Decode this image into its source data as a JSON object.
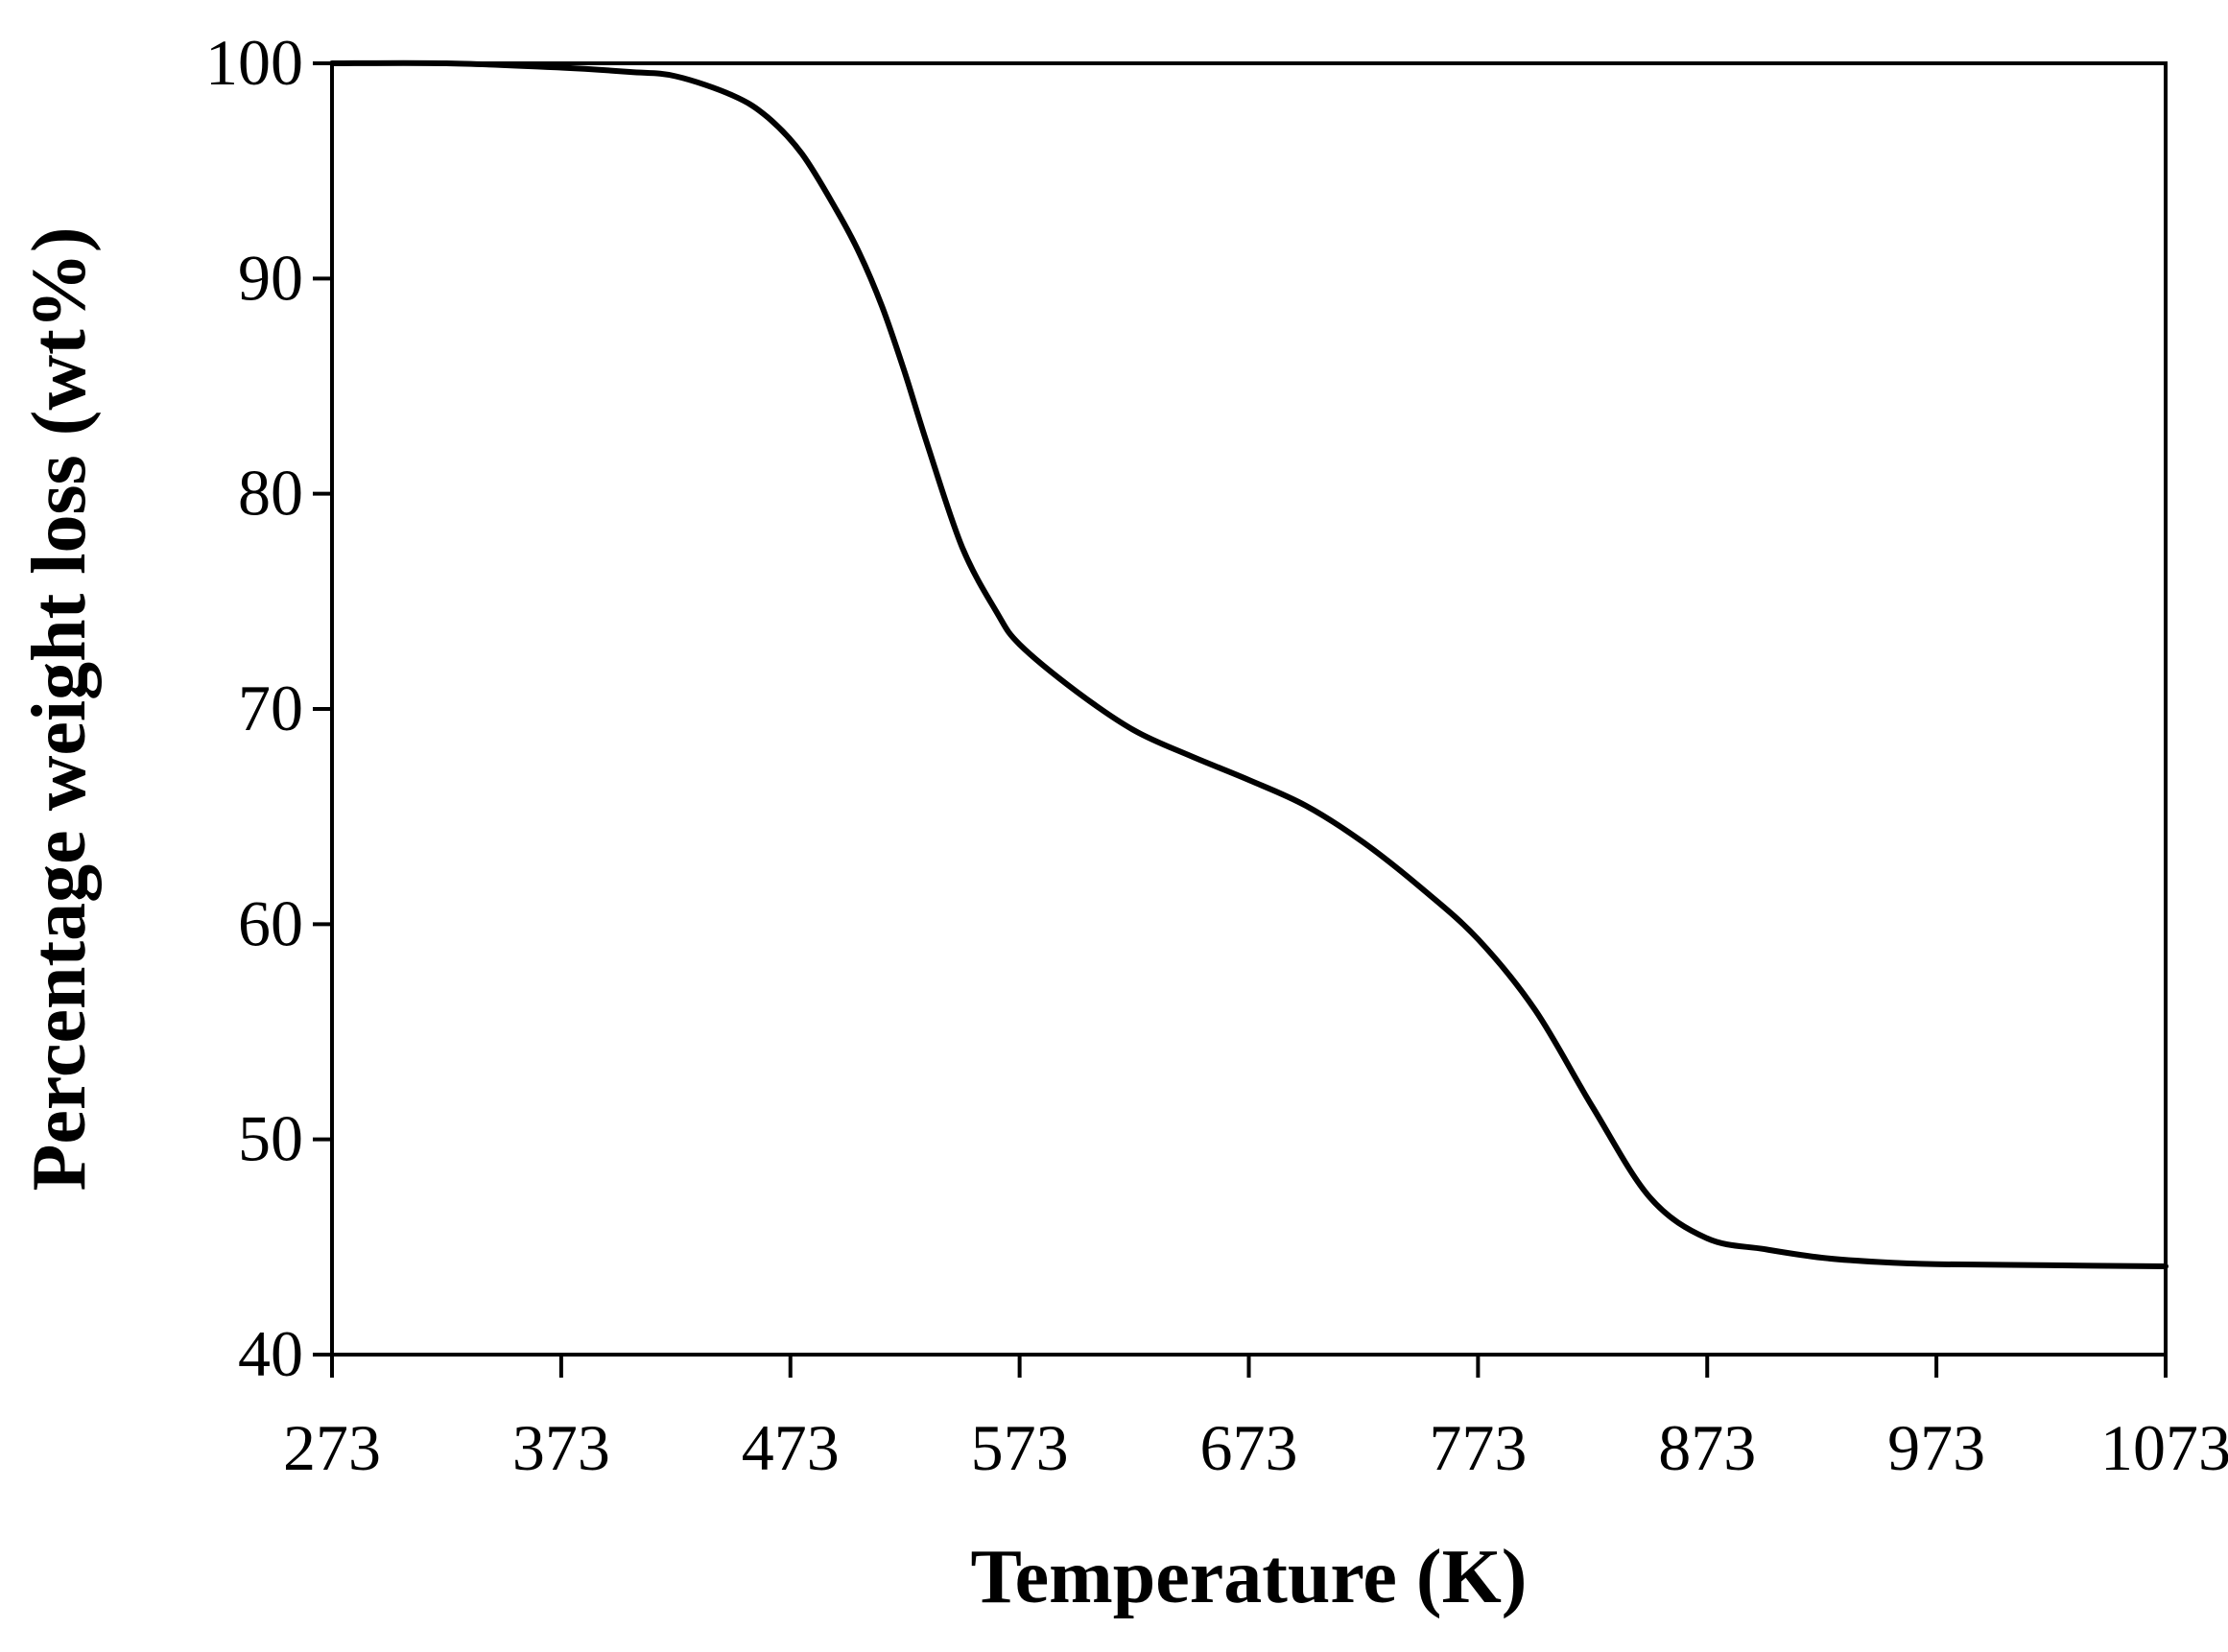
{
  "chart_data": {
    "type": "line",
    "title": "",
    "xlabel": "Temperature (K)",
    "ylabel": "Percentage weight loss (wt%)",
    "xlim": [
      273,
      1073
    ],
    "ylim": [
      40,
      100
    ],
    "xticks": [
      "273",
      "373",
      "473",
      "573",
      "673",
      "773",
      "873",
      "973",
      "1073"
    ],
    "yticks": [
      "40",
      "50",
      "60",
      "70",
      "80",
      "90",
      "100"
    ],
    "grid": false,
    "legend": "none",
    "line_color": "#000000",
    "series": [
      {
        "x": [
          273,
          323,
          373,
          403,
          423,
          448,
          463,
          478,
          493,
          503,
          513,
          523,
          533,
          548,
          563,
          573,
          598,
          623,
          648,
          673,
          698,
          723,
          748,
          773,
          798,
          823,
          848,
          873,
          898,
          923,
          948,
          973,
          1023,
          1073
        ],
        "y": [
          100,
          100,
          99.8,
          99.6,
          99.4,
          98.5,
          97.5,
          95.8,
          93.2,
          91.2,
          88.7,
          85.6,
          82.2,
          77.5,
          74.5,
          73.0,
          70.8,
          69.0,
          67.8,
          66.7,
          65.5,
          63.8,
          61.7,
          59.3,
          56.0,
          51.5,
          47.3,
          45.4,
          44.9,
          44.5,
          44.3,
          44.2,
          44.15,
          44.1
        ]
      }
    ]
  }
}
